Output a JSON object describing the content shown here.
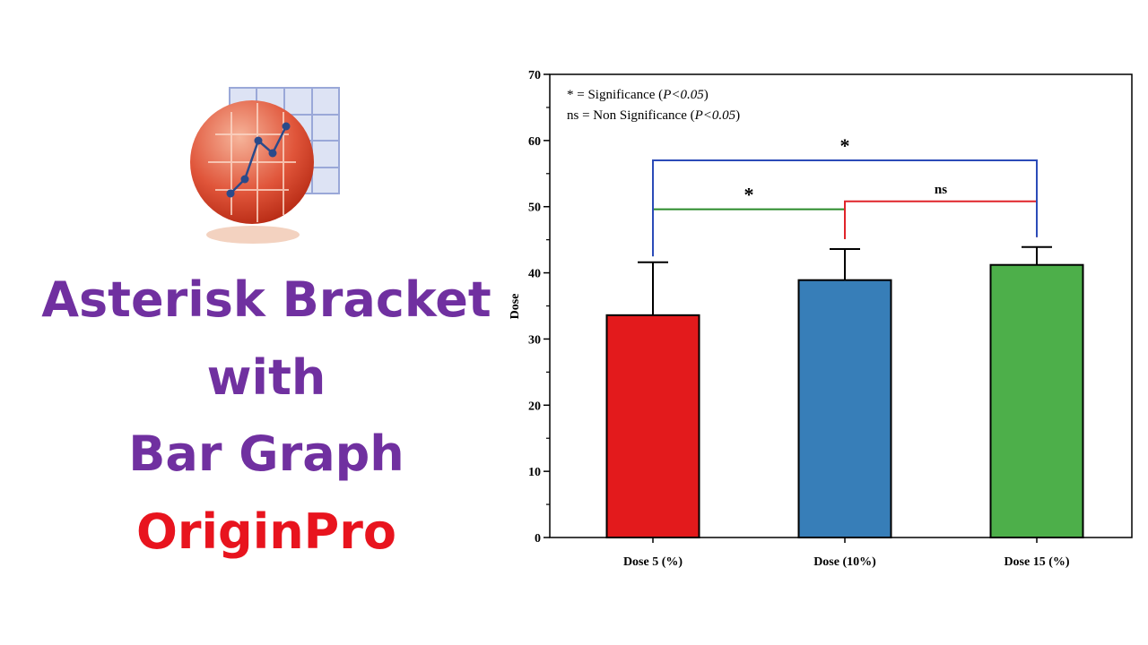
{
  "headline": [
    "Asterisk Bracket",
    "with",
    "Bar Graph",
    "OriginPro"
  ],
  "chart_data": {
    "type": "bar",
    "y_label": "Dose",
    "notes": [
      [
        "* = Significance (",
        "P<0.05",
        ")"
      ],
      [
        "ns = Non Significance (",
        "P<0.05",
        ")"
      ]
    ],
    "categories": [
      "Dose 5 (%)",
      "Dose (10%)",
      "Dose 15 (%)"
    ],
    "values": [
      33.6,
      38.9,
      41.2
    ],
    "errors": [
      8.0,
      4.7,
      2.7
    ],
    "colors": [
      "#e31a1c",
      "#377eb8",
      "#4daf4a"
    ],
    "ylim": [
      0,
      70
    ],
    "yticks": [
      0,
      10,
      20,
      30,
      40,
      50,
      60,
      70
    ],
    "minor_ticks": [
      5,
      15,
      25,
      35,
      45,
      55,
      65
    ],
    "brackets": [
      {
        "from": 0,
        "to": 1,
        "y": 49.6,
        "left_end": 42.5,
        "right_end": 45.1,
        "label": "*",
        "color": "#2a8a2a"
      },
      {
        "from": 1,
        "to": 2,
        "y": 50.8,
        "left_end": 45.1,
        "right_end": 45.4,
        "label": "ns",
        "color": "#e0242a"
      },
      {
        "from": 0,
        "to": 2,
        "y": 57.0,
        "left_end": 42.5,
        "right_end": 45.4,
        "label": "*",
        "color": "#2b4bb8"
      }
    ]
  }
}
